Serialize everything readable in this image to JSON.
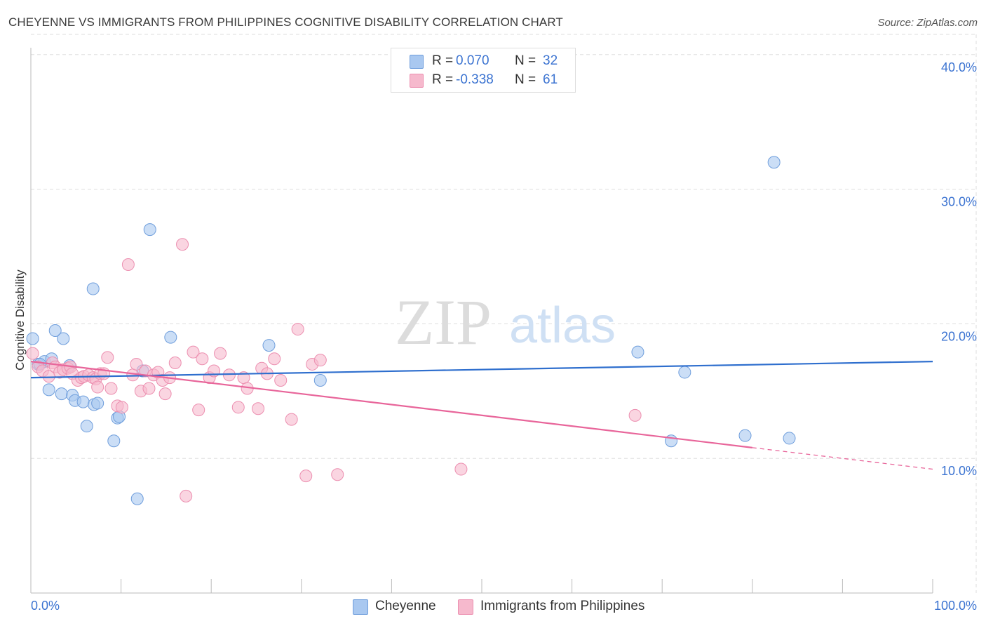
{
  "header": {
    "title": "CHEYENNE VS IMMIGRANTS FROM PHILIPPINES COGNITIVE DISABILITY CORRELATION CHART",
    "source": "Source: ZipAtlas.com"
  },
  "watermark": {
    "zip": "ZIP",
    "atlas": "atlas"
  },
  "legend_top": [
    {
      "r_label": "R =",
      "r_value": "0.070",
      "n_label": "N =",
      "n_value": "32"
    },
    {
      "r_label": "R =",
      "r_value": "-0.338",
      "n_label": "N =",
      "n_value": "61"
    }
  ],
  "legend_bottom": [
    {
      "label": "Cheyenne"
    },
    {
      "label": "Immigrants from Philippines"
    }
  ],
  "colors": {
    "cheyenne_fill": "#a9c8f0",
    "cheyenne_stroke": "#6f9edc",
    "cheyenne_line": "#2f6fce",
    "phil_fill": "#f6b9cd",
    "phil_stroke": "#ec8fb0",
    "phil_line": "#e8659a",
    "axis_text": "#3b73d1",
    "grid": "#dddddd"
  },
  "chart_data": {
    "type": "scatter",
    "title": "CHEYENNE VS IMMIGRANTS FROM PHILIPPINES COGNITIVE DISABILITY CORRELATION CHART",
    "xlabel": "",
    "ylabel": "Cognitive Disability",
    "xlim": [
      0,
      100
    ],
    "ylim": [
      0,
      42
    ],
    "x_tick_labels": [
      "0.0%",
      "100.0%"
    ],
    "y_ticks": [
      10,
      20,
      30,
      40
    ],
    "y_tick_labels": [
      "10.0%",
      "20.0%",
      "30.0%",
      "40.0%"
    ],
    "grid": true,
    "series": [
      {
        "name": "Cheyenne",
        "points": [
          [
            0.2,
            18.9
          ],
          [
            0.8,
            17.0
          ],
          [
            1.5,
            17.2
          ],
          [
            2.0,
            15.1
          ],
          [
            2.7,
            19.5
          ],
          [
            2.3,
            17.4
          ],
          [
            3.4,
            14.8
          ],
          [
            3.6,
            18.9
          ],
          [
            4.3,
            16.9
          ],
          [
            4.6,
            14.7
          ],
          [
            4.9,
            14.3
          ],
          [
            5.8,
            14.2
          ],
          [
            6.2,
            12.4
          ],
          [
            6.9,
            22.6
          ],
          [
            7.0,
            14.0
          ],
          [
            7.4,
            14.1
          ],
          [
            9.2,
            11.3
          ],
          [
            9.6,
            13.0
          ],
          [
            9.8,
            13.1
          ],
          [
            11.8,
            7.0
          ],
          [
            12.4,
            16.5
          ],
          [
            13.2,
            27.0
          ],
          [
            15.5,
            19.0
          ],
          [
            26.4,
            18.4
          ],
          [
            32.1,
            15.8
          ],
          [
            67.3,
            17.9
          ],
          [
            71.0,
            11.3
          ],
          [
            72.5,
            16.4
          ],
          [
            79.2,
            11.7
          ],
          [
            82.4,
            32.0
          ],
          [
            84.1,
            11.5
          ],
          [
            1.0,
            17.0
          ]
        ],
        "trend": {
          "x": [
            0,
            100
          ],
          "y": [
            16.0,
            17.2
          ]
        }
      },
      {
        "name": "Immigrants from Philippines",
        "points": [
          [
            0.2,
            17.8
          ],
          [
            0.8,
            16.8
          ],
          [
            1.3,
            16.5
          ],
          [
            2.0,
            16.1
          ],
          [
            2.4,
            17.1
          ],
          [
            2.7,
            16.8
          ],
          [
            3.2,
            16.4
          ],
          [
            3.6,
            16.6
          ],
          [
            4.1,
            16.7
          ],
          [
            4.4,
            16.8
          ],
          [
            4.6,
            16.3
          ],
          [
            5.2,
            15.8
          ],
          [
            5.6,
            16.0
          ],
          [
            5.9,
            16.1
          ],
          [
            6.4,
            16.2
          ],
          [
            6.9,
            16.0
          ],
          [
            7.2,
            15.9
          ],
          [
            7.4,
            15.3
          ],
          [
            7.7,
            16.3
          ],
          [
            8.1,
            16.3
          ],
          [
            8.5,
            17.5
          ],
          [
            8.9,
            15.2
          ],
          [
            9.6,
            13.9
          ],
          [
            10.1,
            13.8
          ],
          [
            10.8,
            24.4
          ],
          [
            11.3,
            16.2
          ],
          [
            11.7,
            17.0
          ],
          [
            12.2,
            15.0
          ],
          [
            12.7,
            16.5
          ],
          [
            13.1,
            15.2
          ],
          [
            13.6,
            16.2
          ],
          [
            14.1,
            16.4
          ],
          [
            14.6,
            15.8
          ],
          [
            14.9,
            14.8
          ],
          [
            15.4,
            16.0
          ],
          [
            16.0,
            17.1
          ],
          [
            16.8,
            25.9
          ],
          [
            17.2,
            7.2
          ],
          [
            18.0,
            17.9
          ],
          [
            19.0,
            17.4
          ],
          [
            18.6,
            13.6
          ],
          [
            19.8,
            16.0
          ],
          [
            20.3,
            16.5
          ],
          [
            21.0,
            17.8
          ],
          [
            22.0,
            16.2
          ],
          [
            23.0,
            13.8
          ],
          [
            23.6,
            16.0
          ],
          [
            24.0,
            15.2
          ],
          [
            25.2,
            13.7
          ],
          [
            25.6,
            16.7
          ],
          [
            26.2,
            16.3
          ],
          [
            27.0,
            17.4
          ],
          [
            27.7,
            15.8
          ],
          [
            28.9,
            12.9
          ],
          [
            29.6,
            19.6
          ],
          [
            30.5,
            8.7
          ],
          [
            31.2,
            17.0
          ],
          [
            32.1,
            17.3
          ],
          [
            34.0,
            8.8
          ],
          [
            47.7,
            9.2
          ],
          [
            67.0,
            13.2
          ]
        ],
        "trend": {
          "x": [
            0,
            80
          ],
          "y": [
            17.2,
            10.8
          ]
        },
        "trend_dashed": {
          "x": [
            80,
            100
          ],
          "y": [
            10.8,
            9.2
          ]
        }
      }
    ]
  }
}
